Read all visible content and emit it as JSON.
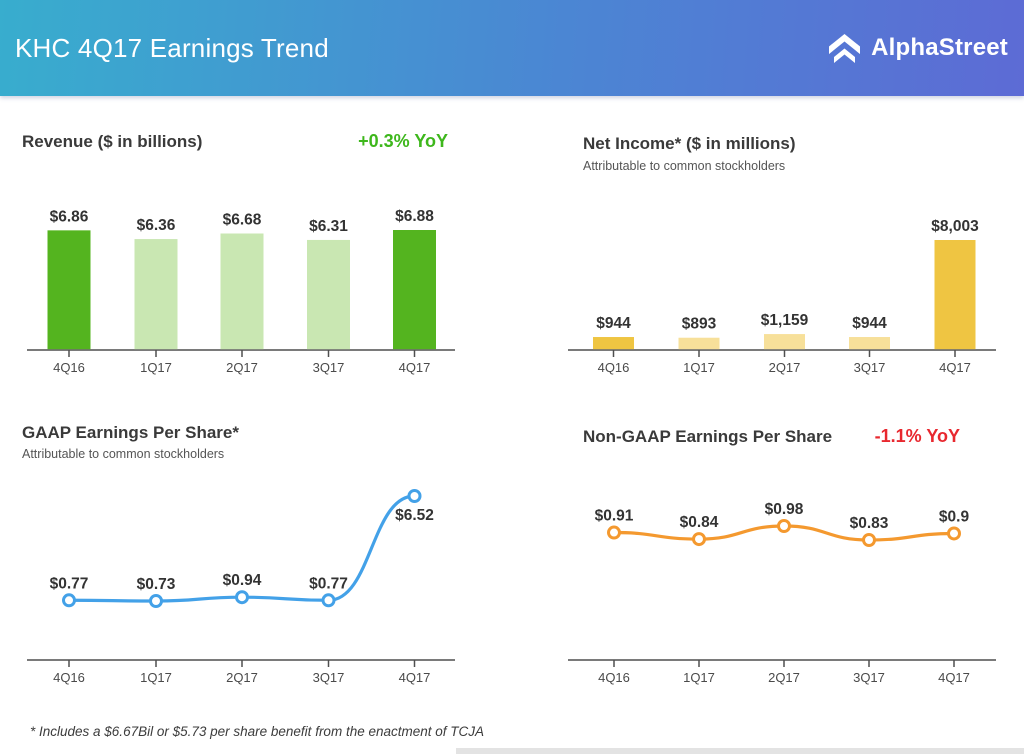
{
  "header": {
    "title": "KHC 4Q17 Earnings Trend",
    "brand": "AlphaStreet",
    "gradient_left": "#38adce",
    "gradient_right": "#5d6bd5"
  },
  "footnote": "* Includes a $6.67Bil or $5.73 per share benefit from the enactment of TCJA",
  "chart_data": [
    {
      "id": "revenue",
      "type": "bar",
      "title": "Revenue ($ in billions)",
      "badge": {
        "text": "+0.3% YoY",
        "color": "#3eb71c"
      },
      "categories": [
        "4Q16",
        "1Q17",
        "2Q17",
        "3Q17",
        "4Q17"
      ],
      "values": [
        6.86,
        6.36,
        6.68,
        6.31,
        6.88
      ],
      "labels": [
        "$6.86",
        "$6.36",
        "$6.68",
        "$6.31",
        "$6.88"
      ],
      "ylim": [
        0,
        6.88
      ],
      "colors": {
        "primary": "#54b41f",
        "muted": "#c9e7b2"
      },
      "highlight_indices": [
        0,
        4
      ]
    },
    {
      "id": "net-income",
      "type": "bar",
      "title": "Net Income* ($ in millions)",
      "subtitle": "Attributable to common stockholders",
      "categories": [
        "4Q16",
        "1Q17",
        "2Q17",
        "3Q17",
        "4Q17"
      ],
      "values": [
        944,
        893,
        1159,
        944,
        8003
      ],
      "labels": [
        "$944",
        "$893",
        "$1,159",
        "$944",
        "$8,003"
      ],
      "ylim": [
        0,
        8003
      ],
      "colors": {
        "primary": "#efc542",
        "muted": "#f7e09a"
      },
      "highlight_indices": [
        0,
        4
      ]
    },
    {
      "id": "gaap-eps",
      "type": "line",
      "title": "GAAP Earnings Per Share*",
      "subtitle": "Attributable to common stockholders",
      "categories": [
        "4Q16",
        "1Q17",
        "2Q17",
        "3Q17",
        "4Q17"
      ],
      "values": [
        0.77,
        0.73,
        0.94,
        0.77,
        6.52
      ],
      "labels": [
        "$0.77",
        "$0.73",
        "$0.94",
        "$0.77",
        "$6.52"
      ],
      "colors": {
        "line": "#43a1e8"
      }
    },
    {
      "id": "non-gaap-eps",
      "type": "line",
      "title": "Non-GAAP Earnings Per Share",
      "badge": {
        "text": "-1.1% YoY",
        "color": "#e8282f"
      },
      "categories": [
        "4Q16",
        "1Q17",
        "2Q17",
        "3Q17",
        "4Q17"
      ],
      "values": [
        0.91,
        0.84,
        0.98,
        0.83,
        0.9
      ],
      "labels": [
        "$0.91",
        "$0.84",
        "$0.98",
        "$0.83",
        "$0.9"
      ],
      "colors": {
        "line": "#f4992f"
      }
    }
  ]
}
